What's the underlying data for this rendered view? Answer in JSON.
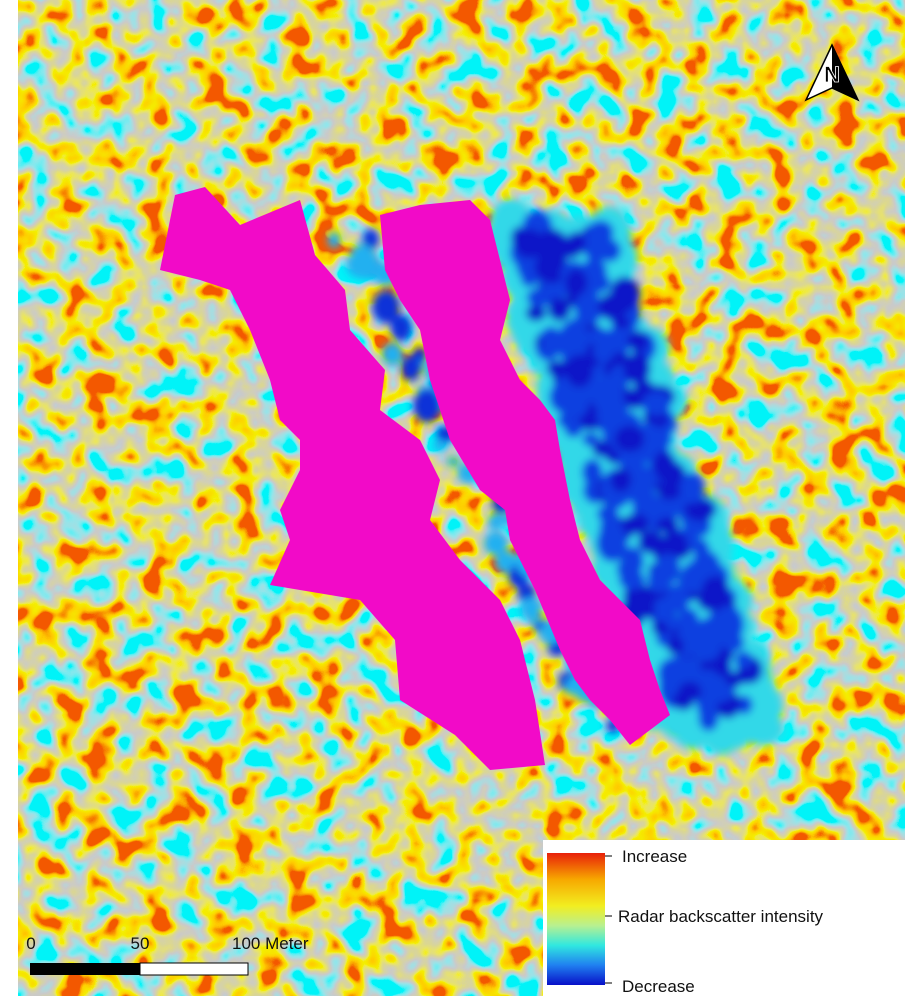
{
  "north_arrow": {
    "label": "N"
  },
  "legend": {
    "high_label": "Increase",
    "title": "Radar backscatter intensity",
    "low_label": "Decrease"
  },
  "scale_bar": {
    "labels": [
      "0",
      "50",
      "100 Meter"
    ]
  }
}
